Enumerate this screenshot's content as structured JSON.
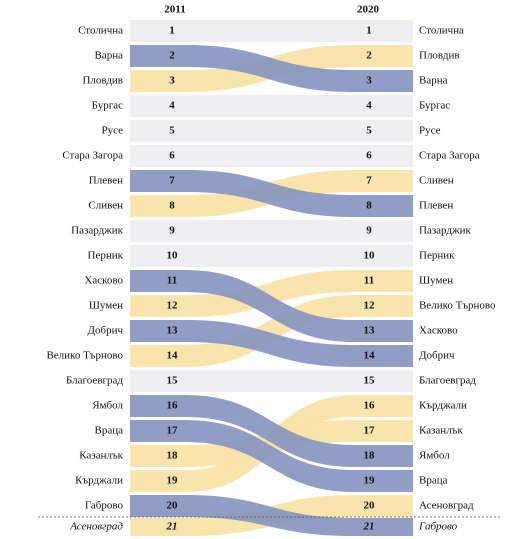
{
  "chart_data": {
    "type": "rank-flow",
    "rise_color": "#f8e2a2",
    "fall_color": "#8493c0",
    "row_color": "#efeef2",
    "left": {
      "year": "2011",
      "rows": [
        {
          "name": "Столична",
          "rank": 1
        },
        {
          "name": "Варна",
          "rank": 2
        },
        {
          "name": "Пловдив",
          "rank": 3
        },
        {
          "name": "Бургас",
          "rank": 4
        },
        {
          "name": "Русе",
          "rank": 5
        },
        {
          "name": "Стара Загора",
          "rank": 6
        },
        {
          "name": "Плевен",
          "rank": 7
        },
        {
          "name": "Сливен",
          "rank": 8
        },
        {
          "name": "Пазарджик",
          "rank": 9
        },
        {
          "name": "Перник",
          "rank": 10
        },
        {
          "name": "Хасково",
          "rank": 11
        },
        {
          "name": "Шумен",
          "rank": 12
        },
        {
          "name": "Добрич",
          "rank": 13
        },
        {
          "name": "Велико Търново",
          "rank": 14
        },
        {
          "name": "Благоевград",
          "rank": 15
        },
        {
          "name": "Ямбол",
          "rank": 16
        },
        {
          "name": "Враца",
          "rank": 17
        },
        {
          "name": "Казанлък",
          "rank": 18
        },
        {
          "name": "Кърджали",
          "rank": 19
        },
        {
          "name": "Габрово",
          "rank": 20
        },
        {
          "name": "Асеновград",
          "rank": 21
        }
      ]
    },
    "right": {
      "year": "2020",
      "rows": [
        {
          "name": "Столична",
          "rank": 1
        },
        {
          "name": "Пловдив",
          "rank": 2
        },
        {
          "name": "Варна",
          "rank": 3
        },
        {
          "name": "Бургас",
          "rank": 4
        },
        {
          "name": "Русе",
          "rank": 5
        },
        {
          "name": "Стара Загора",
          "rank": 6
        },
        {
          "name": "Сливен",
          "rank": 7
        },
        {
          "name": "Плевен",
          "rank": 8
        },
        {
          "name": "Пазарджик",
          "rank": 9
        },
        {
          "name": "Перник",
          "rank": 10
        },
        {
          "name": "Шумен",
          "rank": 11
        },
        {
          "name": "Велико Търново",
          "rank": 12
        },
        {
          "name": "Хасково",
          "rank": 13
        },
        {
          "name": "Добрич",
          "rank": 14
        },
        {
          "name": "Благоевград",
          "rank": 15
        },
        {
          "name": "Кърджали",
          "rank": 16
        },
        {
          "name": "Казанлък",
          "rank": 17
        },
        {
          "name": "Ямбол",
          "rank": 18
        },
        {
          "name": "Враца",
          "rank": 19
        },
        {
          "name": "Асеновград",
          "rank": 20
        },
        {
          "name": "Габрово",
          "rank": 21
        }
      ]
    }
  }
}
